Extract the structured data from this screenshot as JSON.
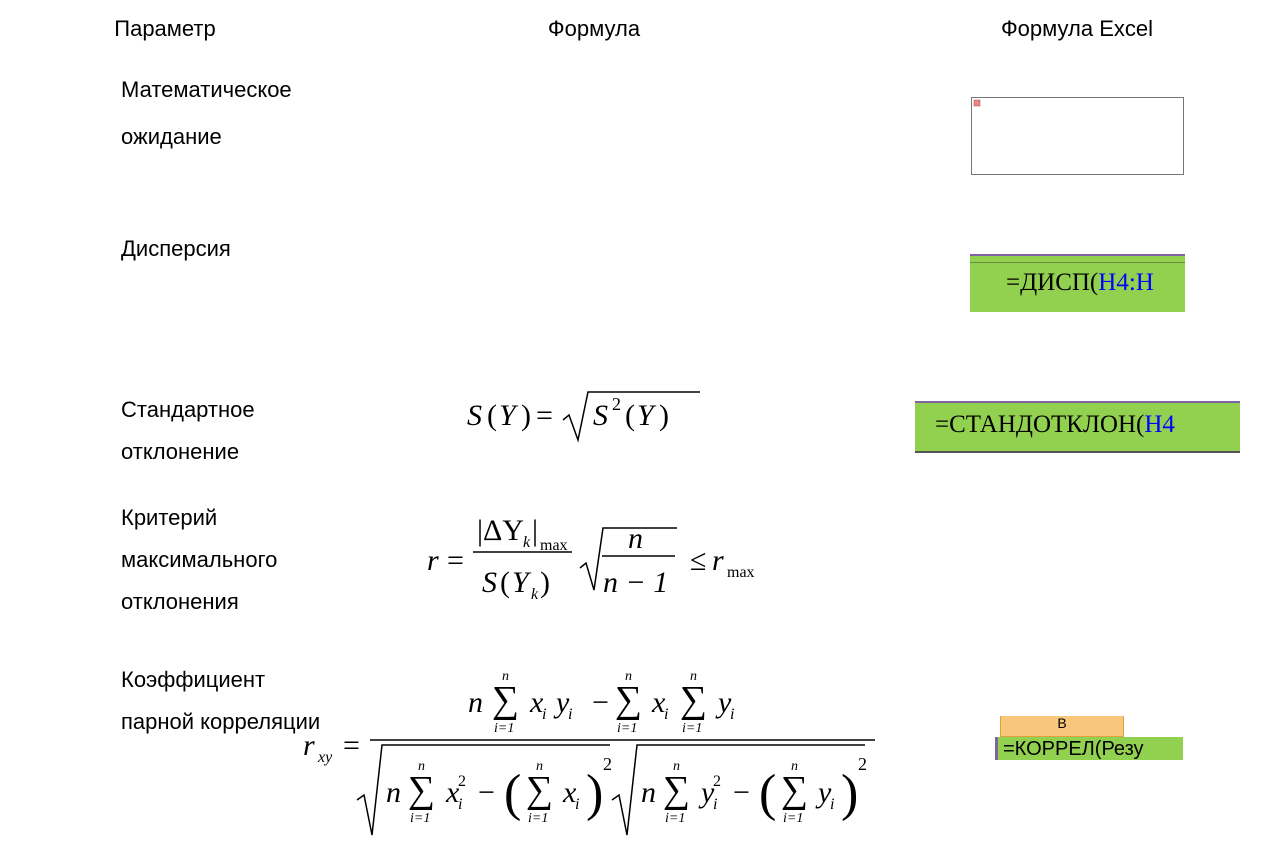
{
  "table": {
    "headers": [
      "Параметр",
      "Формула",
      "Формула Excel"
    ],
    "rows": [
      {
        "parameter": [
          "Математическое",
          "ожидание"
        ]
      },
      {
        "parameter": [
          "Дисперсия"
        ],
        "excel": {
          "function": "=ДИСП(",
          "argument": "H4:H"
        }
      },
      {
        "parameter": [
          "Стандартное",
          "отклонение"
        ],
        "formula": {
          "S": "S",
          "Y": "Y",
          "lp": "(",
          "rp": ")",
          "eq": "=",
          "two": "2"
        },
        "excel": {
          "function": "=СТАНДОТКЛОН(",
          "argument": "H4"
        }
      },
      {
        "parameter": [
          "Критерий",
          "максимального",
          "отклонения"
        ],
        "formula": {
          "r": "r",
          "eq": "=",
          "abs": "|ΔY",
          "k": "k",
          "bar": "|",
          "max": "max",
          "S": "S",
          "lp": "(",
          "Y": "Y",
          "rp": ")",
          "n": "n",
          "n1": "n − 1",
          "le": "≤"
        }
      },
      {
        "parameter": [
          "Коэффициент",
          "парной корреляции"
        ],
        "formula": {
          "r": "r",
          "xy": "xy",
          "eq": "=",
          "n": "n",
          "sum": "∑",
          "lower": "i=1",
          "x": "x",
          "y": "y",
          "i": "i",
          "minus": "−",
          "two": "2",
          "lp": "(",
          "rp": ")"
        },
        "excel": {
          "column": "В",
          "text": "=КОРРЕЛ(Резу"
        }
      }
    ]
  }
}
